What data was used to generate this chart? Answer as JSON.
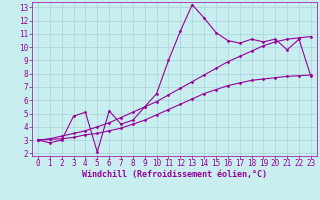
{
  "xlabel": "Windchill (Refroidissement éolien,°C)",
  "bg_color": "#c8eef0",
  "grid_color": "#a8d4d8",
  "line_color": "#990099",
  "xlim": [
    -0.5,
    23.5
  ],
  "ylim": [
    1.8,
    13.4
  ],
  "xticks": [
    0,
    1,
    2,
    3,
    4,
    5,
    6,
    7,
    8,
    9,
    10,
    11,
    12,
    13,
    14,
    15,
    16,
    17,
    18,
    19,
    20,
    21,
    22,
    23
  ],
  "yticks": [
    2,
    3,
    4,
    5,
    6,
    7,
    8,
    9,
    10,
    11,
    12,
    13
  ],
  "line1_x": [
    0,
    1,
    2,
    3,
    4,
    5,
    6,
    7,
    8,
    9,
    10,
    11,
    12,
    13,
    14,
    15,
    16,
    17,
    18,
    19,
    20,
    21,
    22,
    23
  ],
  "line1_y": [
    3.0,
    2.8,
    3.0,
    4.8,
    5.1,
    2.1,
    5.2,
    4.2,
    4.5,
    5.5,
    6.5,
    9.0,
    11.2,
    13.2,
    12.2,
    11.1,
    10.5,
    10.3,
    10.6,
    10.4,
    10.6,
    9.8,
    10.6,
    7.8
  ],
  "line2_x": [
    0,
    1,
    2,
    3,
    4,
    5,
    6,
    7,
    8,
    9,
    10,
    11,
    12,
    13,
    14,
    15,
    16,
    17,
    18,
    19,
    20,
    21,
    22,
    23
  ],
  "line2_y": [
    3.0,
    3.1,
    3.3,
    3.5,
    3.7,
    4.0,
    4.3,
    4.7,
    5.1,
    5.5,
    5.9,
    6.4,
    6.9,
    7.4,
    7.9,
    8.4,
    8.9,
    9.3,
    9.7,
    10.1,
    10.4,
    10.6,
    10.7,
    10.8
  ],
  "line3_x": [
    0,
    1,
    2,
    3,
    4,
    5,
    6,
    7,
    8,
    9,
    10,
    11,
    12,
    13,
    14,
    15,
    16,
    17,
    18,
    19,
    20,
    21,
    22,
    23
  ],
  "line3_y": [
    3.0,
    3.05,
    3.1,
    3.2,
    3.4,
    3.5,
    3.7,
    3.9,
    4.2,
    4.5,
    4.9,
    5.3,
    5.7,
    6.1,
    6.5,
    6.8,
    7.1,
    7.3,
    7.5,
    7.6,
    7.7,
    7.8,
    7.85,
    7.9
  ],
  "xlabel_fontsize": 6,
  "tick_fontsize": 5.5,
  "marker": "D",
  "markersize": 1.5,
  "linewidth": 0.8
}
